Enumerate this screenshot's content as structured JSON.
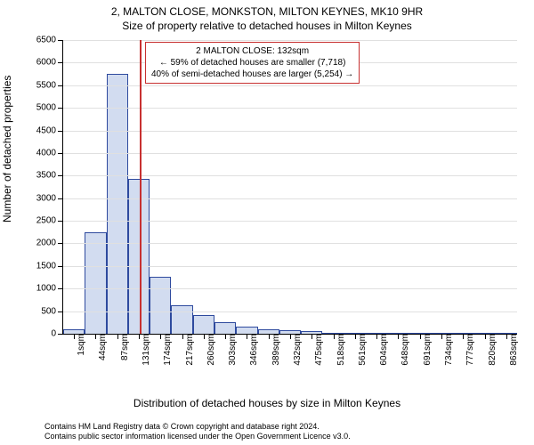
{
  "titles": {
    "line1": "2, MALTON CLOSE, MONKSTON, MILTON KEYNES, MK10 9HR",
    "line2": "Size of property relative to detached houses in Milton Keynes"
  },
  "axes": {
    "ylabel": "Number of detached properties",
    "xlabel": "Distribution of detached houses by size in Milton Keynes",
    "ylim": [
      0,
      6500
    ],
    "yticks": [
      0,
      500,
      1000,
      1500,
      2000,
      2500,
      3000,
      3500,
      4000,
      4500,
      5000,
      5500,
      6000,
      6500
    ],
    "xtick_labels": [
      "1sqm",
      "44sqm",
      "87sqm",
      "131sqm",
      "174sqm",
      "217sqm",
      "260sqm",
      "303sqm",
      "346sqm",
      "389sqm",
      "432sqm",
      "475sqm",
      "518sqm",
      "561sqm",
      "604sqm",
      "648sqm",
      "691sqm",
      "734sqm",
      "777sqm",
      "820sqm",
      "863sqm"
    ],
    "tick_fontsize": 10,
    "label_fontsize": 12,
    "grid_color": "#e0e0e0"
  },
  "bars": {
    "values": [
      90,
      2250,
      5750,
      3420,
      1260,
      630,
      410,
      260,
      150,
      100,
      80,
      50,
      10,
      5,
      5,
      5,
      5,
      5,
      5,
      5,
      5
    ],
    "fill_color": "#d2dcf0",
    "border_color": "#2e4a9e",
    "border_width": 1,
    "bar_width_frac": 1.0
  },
  "reference_line": {
    "x_value_sqm": 132,
    "color": "#c73030",
    "width": 2
  },
  "annotation": {
    "line1": "2 MALTON CLOSE: 132sqm",
    "line2": "← 59% of detached houses are smaller (7,718)",
    "line3": "40% of semi-detached houses are larger (5,254) →",
    "border_color": "#c73030",
    "border_width": 1,
    "background": "#ffffff",
    "fontsize": 10
  },
  "footnotes": {
    "line1": "Contains HM Land Registry data © Crown copyright and database right 2024.",
    "line2": "Contains public sector information licensed under the Open Government Licence v3.0."
  },
  "colors": {
    "background": "#ffffff",
    "text": "#000000",
    "axis": "#000000"
  }
}
